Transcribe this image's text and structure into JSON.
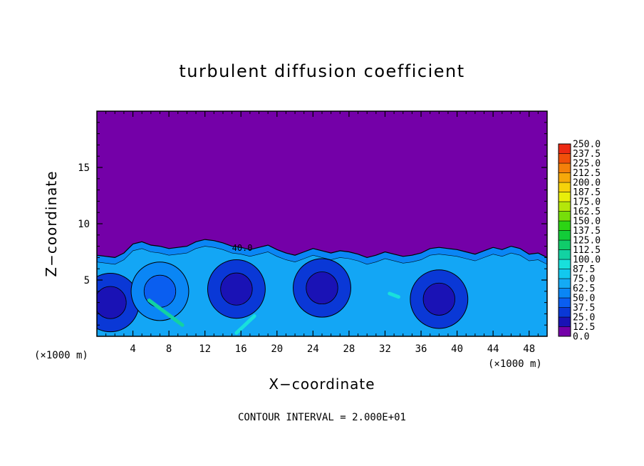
{
  "chart_data": {
    "type": "heatmap",
    "title": "turbulent diffusion coefficient",
    "xlabel": "X−coordinate",
    "ylabel": "Z−coordinate",
    "x_unit": "(×1000 m)",
    "y_unit": "(×1000 m)",
    "xlim": [
      0,
      50
    ],
    "ylim": [
      0,
      20
    ],
    "x_ticks": [
      "4",
      "8",
      "12",
      "16",
      "20",
      "24",
      "28",
      "32",
      "36",
      "40",
      "44",
      "48"
    ],
    "y_ticks": [
      "5",
      "10",
      "15"
    ],
    "footer": "CONTOUR INTERVAL = 2.000E+01",
    "contour_label": "40.0",
    "colorbar": {
      "levels": [
        "0.0",
        "12.5",
        "25.0",
        "37.5",
        "50.0",
        "62.5",
        "75.0",
        "87.5",
        "100.0",
        "112.5",
        "125.0",
        "137.5",
        "150.0",
        "162.5",
        "175.0",
        "187.5",
        "200.0",
        "212.5",
        "225.0",
        "237.5",
        "250.0"
      ],
      "colors": [
        "#7400a8",
        "#1a12b5",
        "#0a38d6",
        "#0a5ef0",
        "#0a86f5",
        "#14aaf5",
        "#12c8ee",
        "#18e0dc",
        "#12d2a2",
        "#10cc6a",
        "#12cc38",
        "#2cd414",
        "#76de0a",
        "#b4e60a",
        "#e8ee0a",
        "#f6d20a",
        "#f6a80a",
        "#f4800a",
        "#f0500a",
        "#ec2a14",
        "#f08080"
      ]
    },
    "boundary_layer_top": [
      [
        0,
        7.2
      ],
      [
        2,
        7.0
      ],
      [
        3,
        7.4
      ],
      [
        4,
        8.2
      ],
      [
        5,
        8.4
      ],
      [
        6,
        8.1
      ],
      [
        7,
        8.0
      ],
      [
        8,
        7.8
      ],
      [
        9,
        7.9
      ],
      [
        10,
        8.0
      ],
      [
        11,
        8.4
      ],
      [
        12,
        8.6
      ],
      [
        13,
        8.5
      ],
      [
        14,
        8.3
      ],
      [
        15,
        8.0
      ],
      [
        16,
        7.9
      ],
      [
        17,
        7.7
      ],
      [
        18,
        7.9
      ],
      [
        19,
        8.1
      ],
      [
        20,
        7.7
      ],
      [
        21,
        7.4
      ],
      [
        22,
        7.2
      ],
      [
        23,
        7.5
      ],
      [
        24,
        7.8
      ],
      [
        25,
        7.6
      ],
      [
        26,
        7.4
      ],
      [
        27,
        7.6
      ],
      [
        28,
        7.5
      ],
      [
        29,
        7.3
      ],
      [
        30,
        7.0
      ],
      [
        31,
        7.2
      ],
      [
        32,
        7.5
      ],
      [
        33,
        7.3
      ],
      [
        34,
        7.1
      ],
      [
        35,
        7.2
      ],
      [
        36,
        7.4
      ],
      [
        37,
        7.8
      ],
      [
        38,
        7.9
      ],
      [
        39,
        7.8
      ],
      [
        40,
        7.7
      ],
      [
        41,
        7.5
      ],
      [
        42,
        7.3
      ],
      [
        43,
        7.6
      ],
      [
        44,
        7.9
      ],
      [
        45,
        7.7
      ],
      [
        46,
        8.0
      ],
      [
        47,
        7.8
      ],
      [
        48,
        7.3
      ],
      [
        49,
        7.4
      ],
      [
        50,
        7.0
      ]
    ],
    "eddies": [
      {
        "x": 15.5,
        "z": 4.2,
        "value": 30
      },
      {
        "x": 25,
        "z": 4.3,
        "value": 32
      },
      {
        "x": 38,
        "z": 3.3,
        "value": 35
      },
      {
        "x": 1.5,
        "z": 3.0,
        "value": 35
      },
      {
        "x": 7,
        "z": 4.0,
        "value": 58
      }
    ],
    "high_streaks": [
      {
        "x1": 5.8,
        "x2": 9.5,
        "z1": 3.2,
        "z2": 1.0,
        "value": 100
      },
      {
        "x1": 15.5,
        "x2": 17.5,
        "z1": 0.3,
        "z2": 1.8,
        "value": 95
      },
      {
        "x1": 32.5,
        "x2": 33.5,
        "z1": 3.8,
        "z2": 3.5,
        "value": 92
      }
    ]
  }
}
